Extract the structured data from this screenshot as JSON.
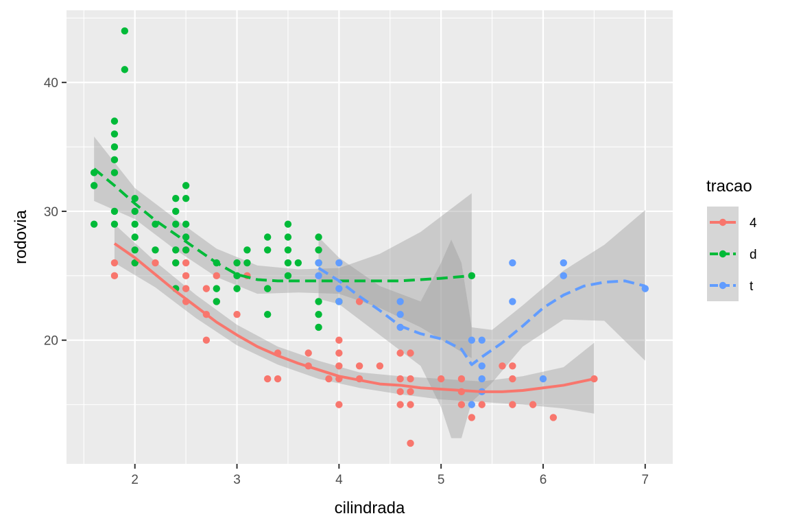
{
  "chart_data": {
    "type": "scatter",
    "title": "",
    "xlabel": "cilindrada",
    "ylabel": "rodovia",
    "xlim": [
      1.33,
      7.27
    ],
    "ylim": [
      10.4,
      45.6
    ],
    "xticks": [
      2,
      3,
      4,
      5,
      6,
      7
    ],
    "yticks": [
      20,
      30,
      40
    ],
    "grid": true,
    "legend": {
      "title": "tracao",
      "position": "right"
    },
    "series": [
      {
        "name": "4",
        "color": "#F8766D",
        "linestyle": "solid",
        "points": [
          [
            1.8,
            26
          ],
          [
            1.8,
            25
          ],
          [
            2,
            26
          ],
          [
            2.2,
            26
          ],
          [
            2.4,
            26
          ],
          [
            2.5,
            27
          ],
          [
            2.5,
            26
          ],
          [
            2.5,
            25
          ],
          [
            2.5,
            24
          ],
          [
            2.5,
            23
          ],
          [
            2.7,
            24
          ],
          [
            2.7,
            22
          ],
          [
            2.7,
            20
          ],
          [
            2.8,
            25
          ],
          [
            2.8,
            23
          ],
          [
            3,
            22
          ],
          [
            3.1,
            25
          ],
          [
            3.3,
            17
          ],
          [
            3.4,
            17
          ],
          [
            3.4,
            19
          ],
          [
            3.7,
            19
          ],
          [
            3.7,
            18
          ],
          [
            3.9,
            17
          ],
          [
            4,
            20
          ],
          [
            4,
            19
          ],
          [
            4,
            18
          ],
          [
            4,
            17
          ],
          [
            4,
            15
          ],
          [
            4.2,
            23
          ],
          [
            4.2,
            18
          ],
          [
            4.2,
            17
          ],
          [
            4.4,
            18
          ],
          [
            4.6,
            19
          ],
          [
            4.6,
            17
          ],
          [
            4.6,
            16
          ],
          [
            4.6,
            15
          ],
          [
            4.7,
            19
          ],
          [
            4.7,
            17
          ],
          [
            4.7,
            16
          ],
          [
            4.7,
            15
          ],
          [
            4.7,
            12
          ],
          [
            5,
            17
          ],
          [
            5.2,
            17
          ],
          [
            5.2,
            16
          ],
          [
            5.2,
            15
          ],
          [
            5.3,
            14
          ],
          [
            5.4,
            15
          ],
          [
            5.6,
            18
          ],
          [
            5.7,
            18
          ],
          [
            5.7,
            17
          ],
          [
            5.7,
            15
          ],
          [
            5.9,
            15
          ],
          [
            6.1,
            14
          ],
          [
            6.5,
            17
          ]
        ],
        "smooth": [
          [
            1.8,
            27.5
          ],
          [
            2.0,
            26.4
          ],
          [
            2.2,
            25.1
          ],
          [
            2.4,
            23.8
          ],
          [
            2.6,
            22.6
          ],
          [
            2.8,
            21.4
          ],
          [
            3.0,
            20.4
          ],
          [
            3.2,
            19.5
          ],
          [
            3.4,
            18.8
          ],
          [
            3.6,
            18.2
          ],
          [
            3.8,
            17.7
          ],
          [
            4.0,
            17.2
          ],
          [
            4.2,
            16.9
          ],
          [
            4.4,
            16.6
          ],
          [
            4.6,
            16.5
          ],
          [
            4.8,
            16.3
          ],
          [
            5.0,
            16.2
          ],
          [
            5.2,
            16.1
          ],
          [
            5.4,
            16.0
          ],
          [
            5.6,
            16.0
          ],
          [
            5.8,
            16.1
          ],
          [
            6.0,
            16.3
          ],
          [
            6.2,
            16.5
          ],
          [
            6.5,
            17.0
          ]
        ],
        "band_upper": [
          [
            1.8,
            29.0
          ],
          [
            2.2,
            26.1
          ],
          [
            2.6,
            23.5
          ],
          [
            3.0,
            21.2
          ],
          [
            3.4,
            19.5
          ],
          [
            3.8,
            18.4
          ],
          [
            4.2,
            17.5
          ],
          [
            4.6,
            17.2
          ],
          [
            5.0,
            17.0
          ],
          [
            5.4,
            16.8
          ],
          [
            5.8,
            17.2
          ],
          [
            6.2,
            17.9
          ],
          [
            6.5,
            19.8
          ]
        ],
        "band_lower": [
          [
            1.8,
            26.0
          ],
          [
            2.2,
            24.1
          ],
          [
            2.6,
            21.7
          ],
          [
            3.0,
            19.6
          ],
          [
            3.4,
            18.1
          ],
          [
            3.8,
            17.0
          ],
          [
            4.2,
            16.3
          ],
          [
            4.6,
            15.8
          ],
          [
            5.0,
            15.4
          ],
          [
            5.4,
            15.2
          ],
          [
            5.8,
            15.0
          ],
          [
            6.2,
            14.7
          ],
          [
            6.5,
            14.3
          ]
        ]
      },
      {
        "name": "d",
        "color": "#00BA38",
        "linestyle": "dashed",
        "points": [
          [
            1.6,
            33
          ],
          [
            1.6,
            32
          ],
          [
            1.6,
            29
          ],
          [
            1.8,
            37
          ],
          [
            1.8,
            36
          ],
          [
            1.8,
            35
          ],
          [
            1.8,
            34
          ],
          [
            1.8,
            33
          ],
          [
            1.8,
            30
          ],
          [
            1.8,
            29
          ],
          [
            1.9,
            44
          ],
          [
            1.9,
            41
          ],
          [
            2,
            31
          ],
          [
            2,
            30
          ],
          [
            2,
            29
          ],
          [
            2,
            28
          ],
          [
            2,
            27
          ],
          [
            2,
            26
          ],
          [
            2.2,
            29
          ],
          [
            2.2,
            27
          ],
          [
            2.4,
            31
          ],
          [
            2.4,
            30
          ],
          [
            2.4,
            29
          ],
          [
            2.4,
            27
          ],
          [
            2.4,
            26
          ],
          [
            2.4,
            24
          ],
          [
            2.5,
            32
          ],
          [
            2.5,
            31
          ],
          [
            2.5,
            29
          ],
          [
            2.5,
            28
          ],
          [
            2.5,
            27
          ],
          [
            2.8,
            26
          ],
          [
            2.8,
            24
          ],
          [
            2.8,
            23
          ],
          [
            3,
            26
          ],
          [
            3,
            25
          ],
          [
            3,
            24
          ],
          [
            3.1,
            27
          ],
          [
            3.1,
            26
          ],
          [
            3.3,
            28
          ],
          [
            3.3,
            27
          ],
          [
            3.3,
            24
          ],
          [
            3.3,
            22
          ],
          [
            3.5,
            29
          ],
          [
            3.5,
            28
          ],
          [
            3.5,
            27
          ],
          [
            3.5,
            26
          ],
          [
            3.5,
            25
          ],
          [
            3.6,
            26
          ],
          [
            3.8,
            28
          ],
          [
            3.8,
            27
          ],
          [
            3.8,
            26
          ],
          [
            3.8,
            23
          ],
          [
            3.8,
            22
          ],
          [
            3.8,
            21
          ],
          [
            4,
            23
          ],
          [
            5.3,
            25
          ]
        ],
        "smooth": [
          [
            1.6,
            33.3
          ],
          [
            1.8,
            32.0
          ],
          [
            2.0,
            30.6
          ],
          [
            2.2,
            29.3
          ],
          [
            2.4,
            28.2
          ],
          [
            2.6,
            27.1
          ],
          [
            2.8,
            26.0
          ],
          [
            3.0,
            25.1
          ],
          [
            3.2,
            24.7
          ],
          [
            3.4,
            24.6
          ],
          [
            3.6,
            24.6
          ],
          [
            3.8,
            24.6
          ],
          [
            4.0,
            24.6
          ],
          [
            4.2,
            24.6
          ],
          [
            4.4,
            24.6
          ],
          [
            4.6,
            24.6
          ],
          [
            4.8,
            24.7
          ],
          [
            5.0,
            24.8
          ],
          [
            5.3,
            25.0
          ]
        ],
        "band_upper": [
          [
            1.6,
            35.8
          ],
          [
            2.0,
            31.8
          ],
          [
            2.4,
            29.4
          ],
          [
            2.8,
            27.1
          ],
          [
            3.2,
            25.8
          ],
          [
            3.6,
            25.5
          ],
          [
            4.0,
            25.6
          ],
          [
            4.4,
            26.7
          ],
          [
            4.8,
            28.4
          ],
          [
            5.3,
            31.4
          ]
        ],
        "band_lower": [
          [
            1.6,
            30.8
          ],
          [
            2.0,
            29.4
          ],
          [
            2.4,
            27.0
          ],
          [
            2.8,
            24.9
          ],
          [
            3.2,
            23.6
          ],
          [
            3.6,
            23.7
          ],
          [
            4.0,
            23.6
          ],
          [
            4.4,
            22.5
          ],
          [
            4.8,
            21.0
          ],
          [
            5.3,
            18.6
          ]
        ]
      },
      {
        "name": "t",
        "color": "#619CFF",
        "linestyle": "dashed",
        "points": [
          [
            3.8,
            25
          ],
          [
            3.8,
            26
          ],
          [
            4,
            26
          ],
          [
            4,
            24
          ],
          [
            4,
            23
          ],
          [
            4.6,
            23
          ],
          [
            4.6,
            22
          ],
          [
            4.6,
            21
          ],
          [
            5.3,
            20
          ],
          [
            5.3,
            15
          ],
          [
            5.4,
            20
          ],
          [
            5.4,
            18
          ],
          [
            5.4,
            17
          ],
          [
            5.4,
            16
          ],
          [
            5.7,
            26
          ],
          [
            5.7,
            23
          ],
          [
            6,
            17
          ],
          [
            6.2,
            26
          ],
          [
            6.2,
            25
          ],
          [
            7,
            24
          ]
        ],
        "smooth": [
          [
            3.8,
            25.6
          ],
          [
            4.0,
            24.6
          ],
          [
            4.2,
            23.4
          ],
          [
            4.4,
            22.3
          ],
          [
            4.6,
            21.1
          ],
          [
            4.8,
            20.5
          ],
          [
            5.0,
            20.1
          ],
          [
            5.2,
            19.3
          ],
          [
            5.3,
            18.1
          ],
          [
            5.4,
            18.7
          ],
          [
            5.6,
            19.8
          ],
          [
            5.8,
            21.1
          ],
          [
            6.0,
            22.5
          ],
          [
            6.2,
            23.5
          ],
          [
            6.4,
            24.2
          ],
          [
            6.6,
            24.5
          ],
          [
            6.8,
            24.6
          ],
          [
            7.0,
            24.2
          ]
        ],
        "band_upper": [
          [
            3.8,
            28.0
          ],
          [
            4.0,
            26.4
          ],
          [
            4.4,
            24.2
          ],
          [
            4.8,
            23.0
          ],
          [
            5.0,
            26.0
          ],
          [
            5.1,
            27.8
          ],
          [
            5.2,
            26.0
          ],
          [
            5.3,
            21.0
          ],
          [
            5.5,
            20.8
          ],
          [
            5.8,
            22.7
          ],
          [
            6.2,
            25.4
          ],
          [
            6.6,
            27.4
          ],
          [
            7.0,
            30.1
          ]
        ],
        "band_lower": [
          [
            3.8,
            23.2
          ],
          [
            4.0,
            22.8
          ],
          [
            4.4,
            20.4
          ],
          [
            4.8,
            18.0
          ],
          [
            5.0,
            14.8
          ],
          [
            5.1,
            12.4
          ],
          [
            5.2,
            12.4
          ],
          [
            5.3,
            15.2
          ],
          [
            5.5,
            16.7
          ],
          [
            5.8,
            19.5
          ],
          [
            6.2,
            21.6
          ],
          [
            6.6,
            21.5
          ],
          [
            7.0,
            18.4
          ]
        ]
      }
    ]
  }
}
